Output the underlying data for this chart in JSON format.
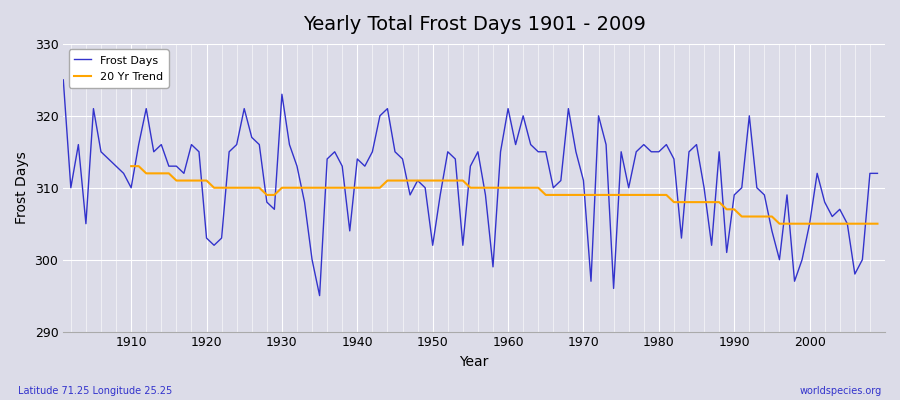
{
  "title": "Yearly Total Frost Days 1901 - 2009",
  "xlabel": "Year",
  "ylabel": "Frost Days",
  "footnote_left": "Latitude 71.25 Longitude 25.25",
  "footnote_right": "worldspecies.org",
  "ylim": [
    290,
    330
  ],
  "yticks": [
    290,
    300,
    310,
    320,
    330
  ],
  "bg_color": "#dcdce8",
  "line_color": "#3333cc",
  "trend_color": "#ffa500",
  "years": [
    1901,
    1902,
    1903,
    1904,
    1905,
    1906,
    1907,
    1908,
    1909,
    1910,
    1911,
    1912,
    1913,
    1914,
    1915,
    1916,
    1917,
    1918,
    1919,
    1920,
    1921,
    1922,
    1923,
    1924,
    1925,
    1926,
    1927,
    1928,
    1929,
    1930,
    1931,
    1932,
    1933,
    1934,
    1935,
    1936,
    1937,
    1938,
    1939,
    1940,
    1941,
    1942,
    1943,
    1944,
    1945,
    1946,
    1947,
    1948,
    1949,
    1950,
    1951,
    1952,
    1953,
    1954,
    1955,
    1956,
    1957,
    1958,
    1959,
    1960,
    1961,
    1962,
    1963,
    1964,
    1965,
    1966,
    1967,
    1968,
    1969,
    1970,
    1971,
    1972,
    1973,
    1974,
    1975,
    1976,
    1977,
    1978,
    1979,
    1980,
    1981,
    1982,
    1983,
    1984,
    1985,
    1986,
    1987,
    1988,
    1989,
    1990,
    1991,
    1992,
    1993,
    1994,
    1995,
    1996,
    1997,
    1998,
    1999,
    2000,
    2001,
    2002,
    2003,
    2004,
    2005,
    2006,
    2007,
    2008,
    2009
  ],
  "frost_days": [
    325,
    310,
    316,
    305,
    321,
    315,
    314,
    313,
    312,
    310,
    316,
    321,
    315,
    316,
    313,
    313,
    312,
    316,
    315,
    303,
    302,
    303,
    315,
    316,
    321,
    317,
    316,
    308,
    307,
    323,
    316,
    313,
    308,
    300,
    295,
    314,
    315,
    313,
    304,
    314,
    313,
    315,
    320,
    321,
    315,
    314,
    309,
    311,
    310,
    302,
    309,
    315,
    314,
    302,
    313,
    315,
    309,
    299,
    315,
    321,
    316,
    320,
    316,
    315,
    315,
    310,
    311,
    321,
    315,
    311,
    297,
    320,
    316,
    296,
    315,
    310,
    315,
    316,
    315,
    315,
    316,
    314,
    303,
    315,
    316,
    310,
    302,
    315,
    301,
    309,
    310,
    320,
    310,
    309,
    304,
    300,
    309,
    297,
    300,
    305,
    312,
    308,
    306,
    307,
    305,
    298,
    300,
    312,
    312
  ],
  "trend_years": [
    1910,
    1911,
    1912,
    1913,
    1914,
    1915,
    1916,
    1917,
    1918,
    1919,
    1920,
    1921,
    1922,
    1923,
    1924,
    1925,
    1926,
    1927,
    1928,
    1929,
    1930,
    1931,
    1932,
    1933,
    1934,
    1935,
    1936,
    1937,
    1938,
    1939,
    1940,
    1941,
    1942,
    1943,
    1944,
    1945,
    1946,
    1947,
    1948,
    1949,
    1950,
    1951,
    1952,
    1953,
    1954,
    1955,
    1956,
    1957,
    1958,
    1959,
    1960,
    1961,
    1962,
    1963,
    1964,
    1965,
    1966,
    1967,
    1968,
    1969,
    1970,
    1971,
    1972,
    1973,
    1974,
    1975,
    1976,
    1977,
    1978,
    1979,
    1980,
    1981,
    1982,
    1983,
    1984,
    1985,
    1986,
    1987,
    1988,
    1989,
    1990,
    1991,
    1992,
    1993,
    1994,
    1995,
    1996,
    1997,
    1998,
    1999,
    2000,
    2001,
    2002,
    2003,
    2004,
    2005,
    2006,
    2007,
    2008,
    2009
  ],
  "trend_values": [
    313,
    313,
    312,
    312,
    312,
    312,
    311,
    311,
    311,
    311,
    311,
    310,
    310,
    310,
    310,
    310,
    310,
    310,
    309,
    309,
    310,
    310,
    310,
    310,
    310,
    310,
    310,
    310,
    310,
    310,
    310,
    310,
    310,
    310,
    311,
    311,
    311,
    311,
    311,
    311,
    311,
    311,
    311,
    311,
    311,
    310,
    310,
    310,
    310,
    310,
    310,
    310,
    310,
    310,
    310,
    309,
    309,
    309,
    309,
    309,
    309,
    309,
    309,
    309,
    309,
    309,
    309,
    309,
    309,
    309,
    309,
    309,
    308,
    308,
    308,
    308,
    308,
    308,
    308,
    307,
    307,
    306,
    306,
    306,
    306,
    306,
    305,
    305,
    305,
    305,
    305,
    305,
    305,
    305,
    305,
    305,
    305,
    305,
    305,
    305
  ]
}
